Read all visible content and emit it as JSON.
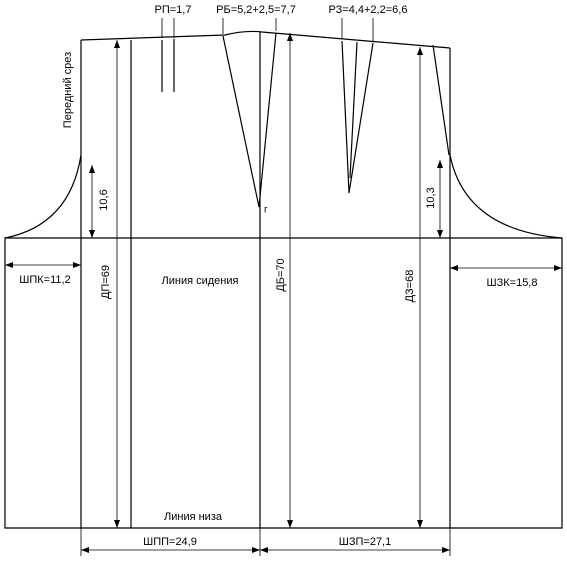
{
  "labels": {
    "rp": "РП=1,7",
    "rb": "РБ=5,2+2,5=7,7",
    "rz": "РЗ=4,4+2,2=6,6",
    "front_cut": "Передний срез",
    "front_depth": "10,6",
    "back_depth": "10,3",
    "shpk": "ШПК=11,2",
    "dp": "ДП=69",
    "seat_line": "Линия сидения",
    "db": "ДБ=70",
    "dz": "ДЗ=68",
    "shzk": "ШЗК=15,8",
    "hem_line": "Линия низа",
    "shpp": "ШПП=24,9",
    "shzp": "ШЗП=27,1",
    "point_g": "г"
  }
}
